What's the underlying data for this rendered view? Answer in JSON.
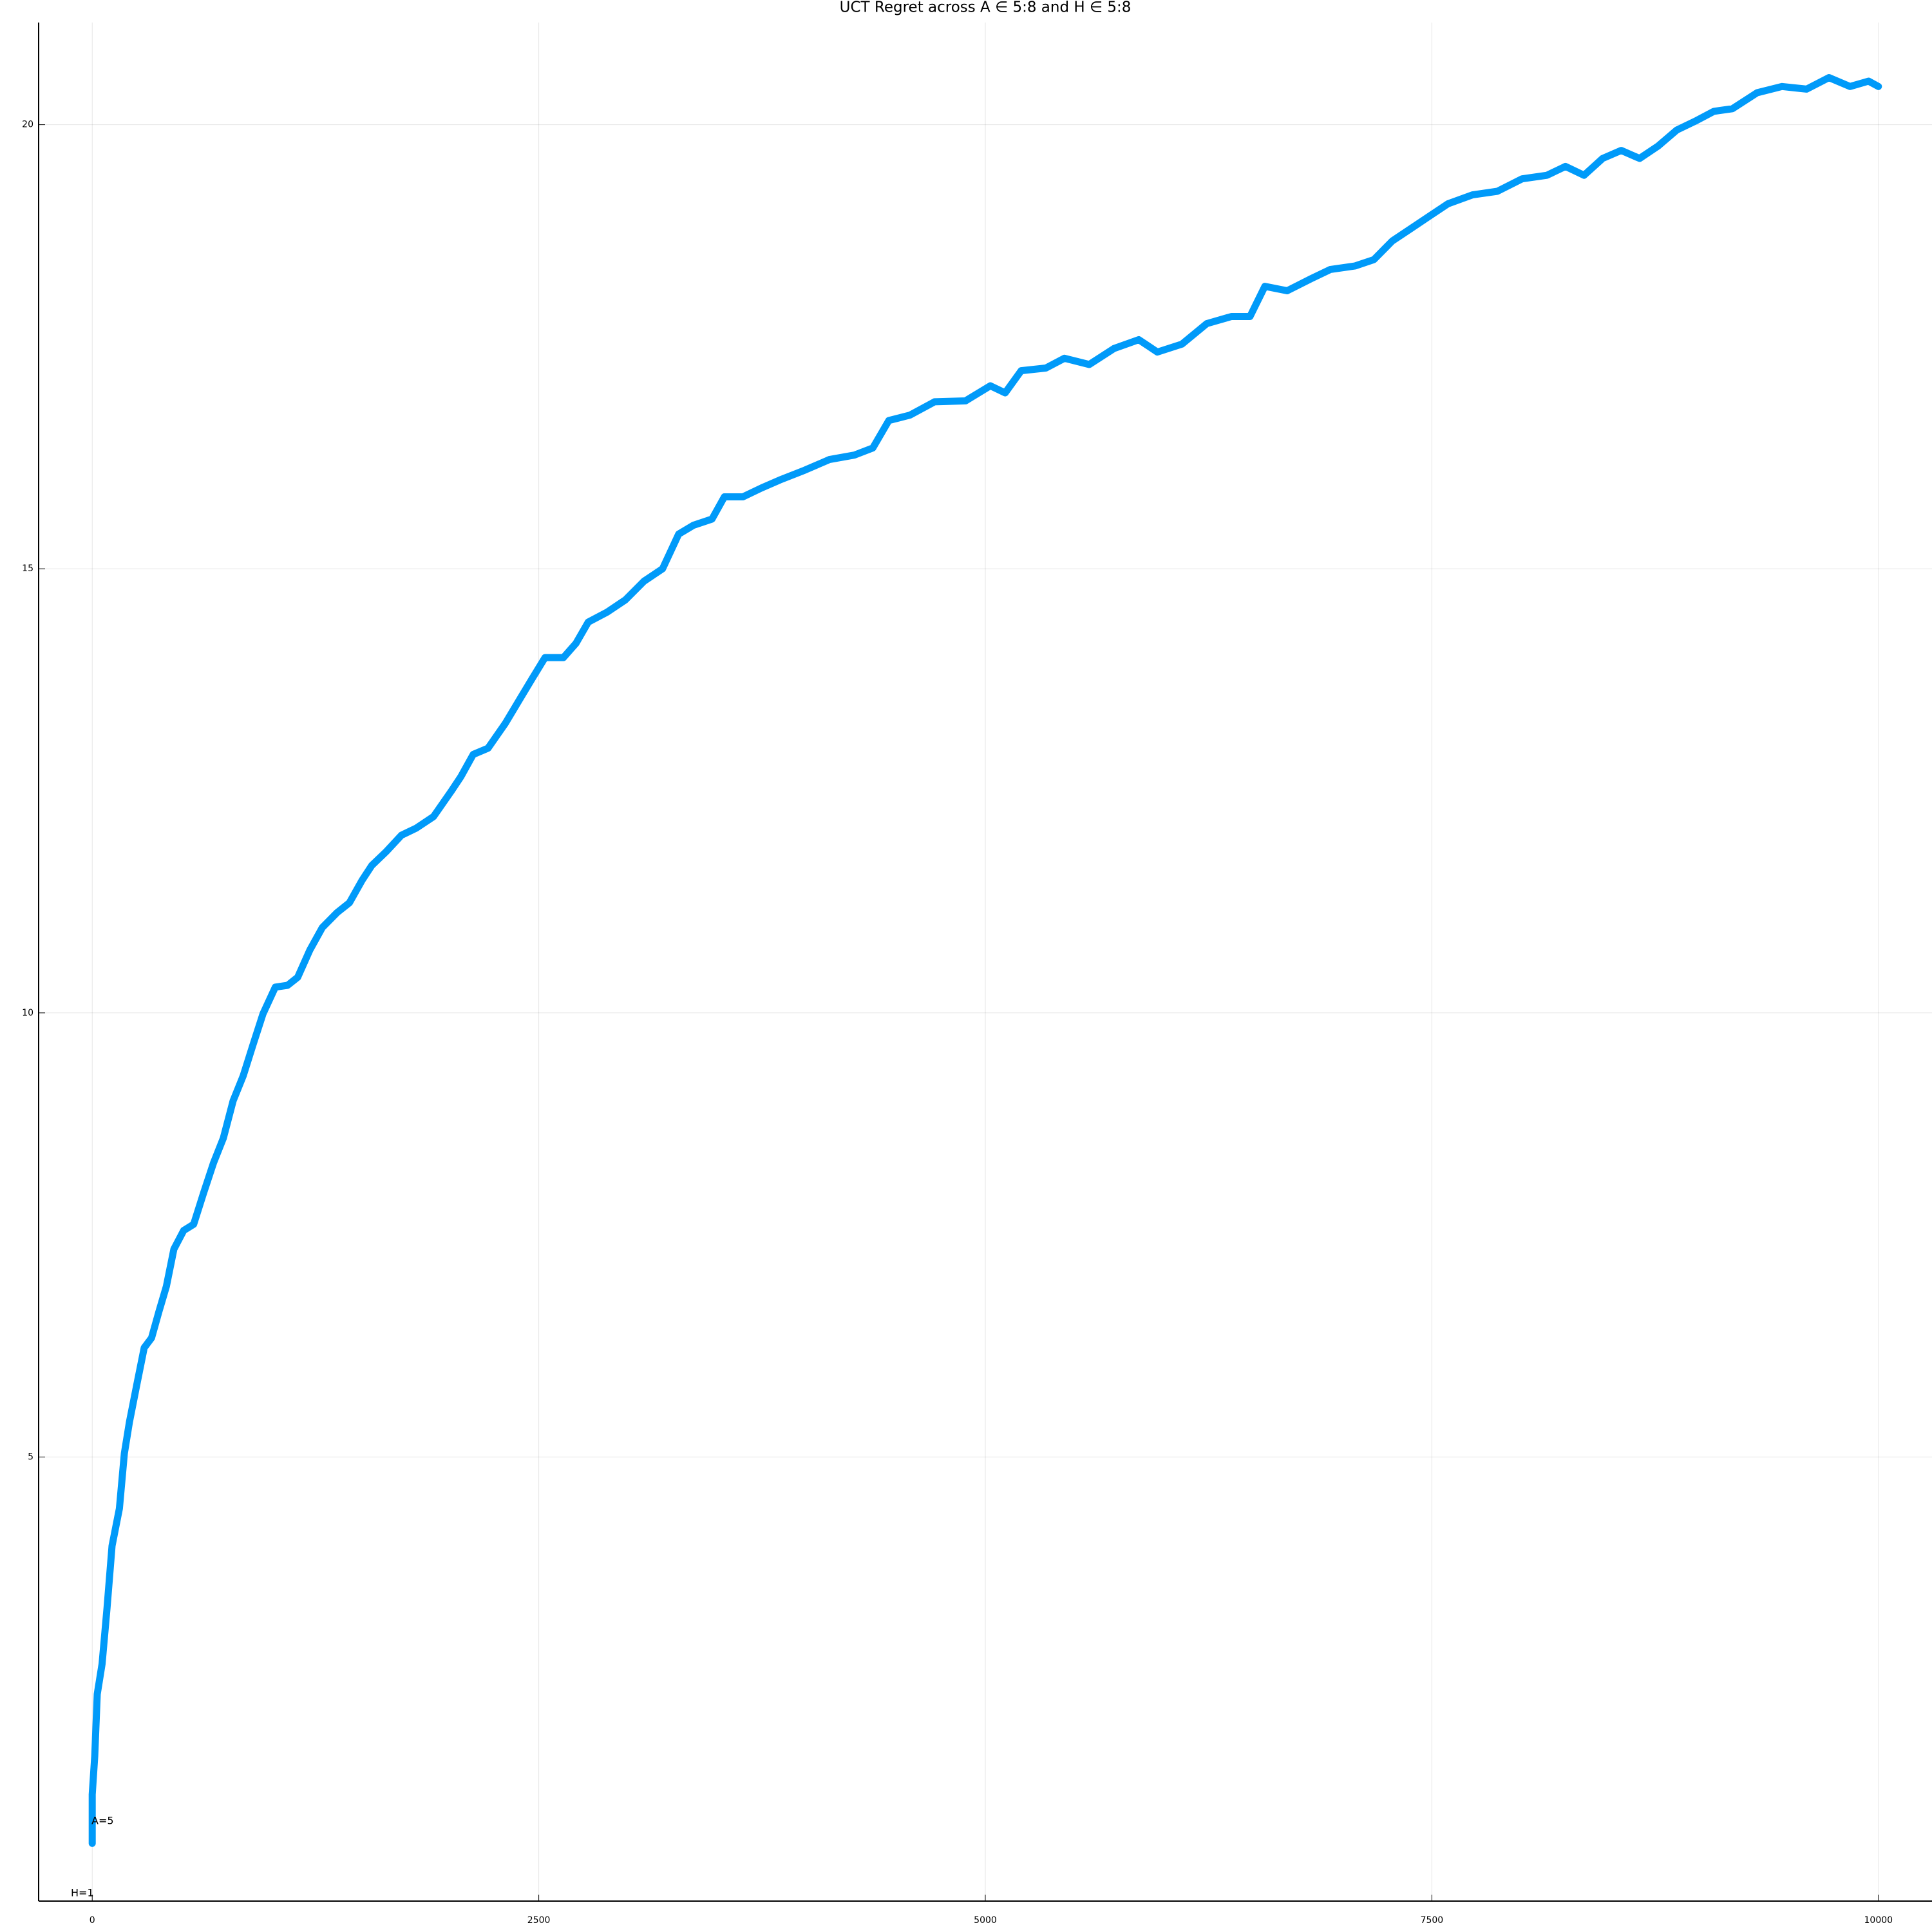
{
  "chart_data": {
    "type": "line",
    "title": "UCT Regret across A ∈ 5:8 and H ∈ 5:8",
    "annotations": [
      "A=5",
      "H=1"
    ],
    "grid": true,
    "xlim": [
      -300,
      10300
    ],
    "xticks": [
      0,
      2500,
      5000,
      7500,
      10000
    ],
    "ylim": [
      0,
      21.15
    ],
    "yticks": [
      5,
      10,
      15,
      20
    ],
    "x": [
      0,
      0,
      14,
      28,
      55,
      83,
      111,
      152,
      180,
      208,
      249,
      291,
      332,
      374,
      415,
      457,
      512,
      568,
      623,
      679,
      734,
      789,
      845,
      900,
      956,
      1025,
      1094,
      1150,
      1219,
      1288,
      1371,
      1440,
      1510,
      1565,
      1648,
      1731,
      1814,
      1911,
      2008,
      2064,
      2133,
      2216,
      2313,
      2396,
      2465,
      2535,
      2638,
      2708,
      2777,
      2881,
      2985,
      3089,
      3193,
      3283,
      3366,
      3470,
      3539,
      3643,
      3747,
      3850,
      3989,
      4127,
      4266,
      4370,
      4460,
      4578,
      4716,
      4889,
      5028,
      5111,
      5201,
      5339,
      5443,
      5582,
      5720,
      5859,
      5963,
      6101,
      6240,
      6378,
      6482,
      6565,
      6690,
      6828,
      6932,
      7071,
      7175,
      7278,
      7382,
      7486,
      7590,
      7728,
      7867,
      8005,
      8144,
      8248,
      8352,
      8456,
      8560,
      8663,
      8767,
      8871,
      8975,
      9079,
      9183,
      9321,
      9460,
      9598,
      9723,
      9841,
      9945,
      10000
    ],
    "series": [
      {
        "name": "y1",
        "color": "#009af9",
        "values": [
          0.65,
          1.2,
          1.63,
          2.33,
          2.67,
          3.3,
          4.0,
          4.42,
          5.04,
          5.39,
          5.81,
          6.23,
          6.34,
          6.64,
          6.92,
          7.34,
          7.55,
          7.62,
          7.97,
          8.31,
          8.59,
          9.01,
          9.29,
          9.64,
          9.99,
          10.29,
          10.31,
          10.4,
          10.71,
          10.96,
          11.13,
          11.24,
          11.49,
          11.66,
          11.82,
          12.0,
          12.08,
          12.21,
          12.49,
          12.66,
          12.91,
          12.98,
          13.26,
          13.54,
          13.77,
          14.0,
          14.0,
          14.16,
          14.4,
          14.51,
          14.65,
          14.86,
          15.0,
          15.39,
          15.49,
          15.56,
          15.81,
          15.81,
          15.91,
          16.0,
          16.11,
          16.23,
          16.28,
          16.36,
          16.67,
          16.73,
          16.88,
          16.89,
          17.06,
          16.98,
          17.23,
          17.26,
          17.37,
          17.3,
          17.48,
          17.58,
          17.44,
          17.53,
          17.76,
          17.84,
          17.84,
          18.18,
          18.13,
          18.27,
          18.37,
          18.41,
          18.48,
          18.69,
          18.83,
          18.97,
          19.11,
          19.21,
          19.25,
          19.39,
          19.43,
          19.53,
          19.43,
          19.62,
          19.71,
          19.62,
          19.76,
          19.94,
          20.04,
          20.15,
          20.18,
          20.36,
          20.43,
          20.4,
          20.53,
          20.43,
          20.49,
          20.43
        ]
      }
    ]
  }
}
